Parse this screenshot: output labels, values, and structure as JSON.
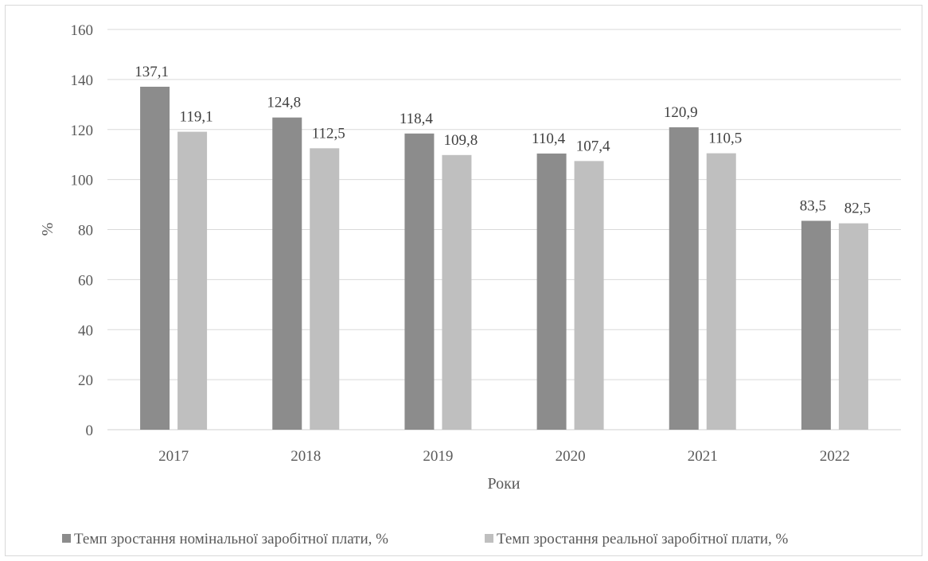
{
  "chart_data": {
    "type": "bar",
    "title": "",
    "xlabel": "Роки",
    "ylabel": "%",
    "ylim": [
      0,
      160
    ],
    "yticks": [
      0,
      20,
      40,
      60,
      80,
      100,
      120,
      140,
      160
    ],
    "grid": true,
    "legend_position": "bottom",
    "categories": [
      "2017",
      "2018",
      "2019",
      "2020",
      "2021",
      "2022"
    ],
    "series": [
      {
        "name": "Темп зростання номінальної заробітної плати, %",
        "color": "#8c8c8c",
        "values": [
          137.1,
          124.8,
          118.4,
          110.4,
          120.9,
          83.5
        ],
        "labels": [
          "137,1",
          "124,8",
          "118,4",
          "110,4",
          "120,9",
          "83,5"
        ]
      },
      {
        "name": "Темп зростання реальної заробітної плати, %",
        "color": "#bfbfbf",
        "values": [
          119.1,
          112.5,
          109.8,
          107.4,
          110.5,
          82.5
        ],
        "labels": [
          "119,1",
          "112,5",
          "109,8",
          "107,4",
          "110,5",
          "82,5"
        ]
      }
    ]
  }
}
